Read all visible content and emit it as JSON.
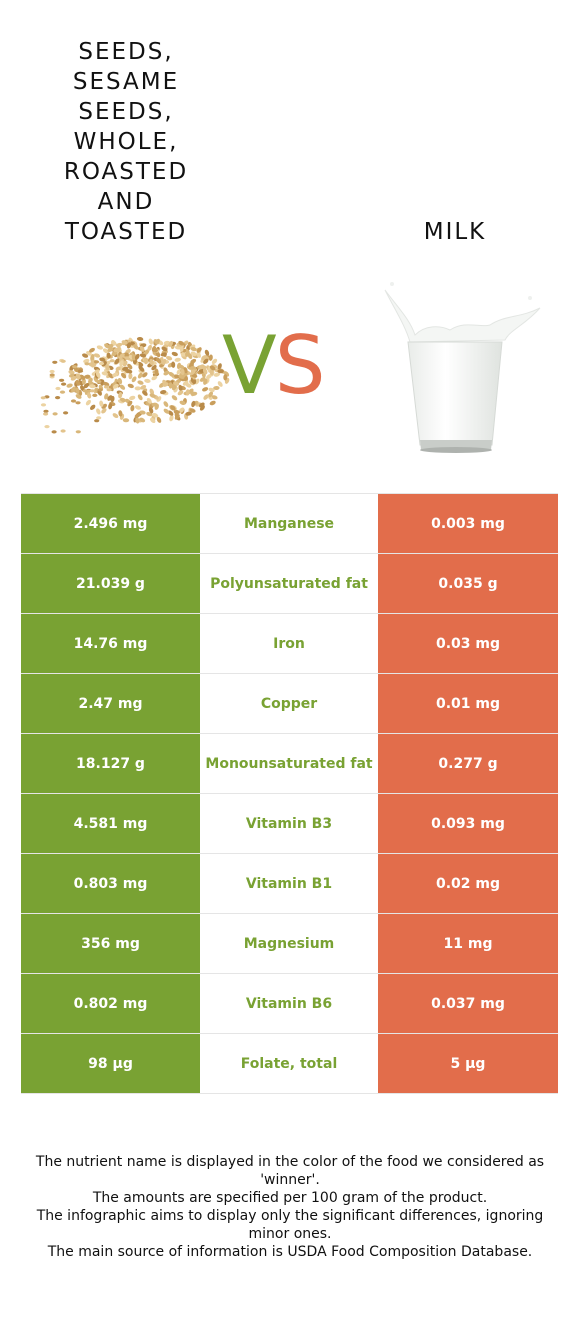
{
  "food1": {
    "title": "SEEDS, SESAME SEEDS, WHOLE, ROASTED AND TOASTED",
    "image": "sesame-seeds-pile"
  },
  "food2": {
    "title": "MILK",
    "image": "glass-of-milk"
  },
  "vs": {
    "v": "V",
    "s": "S"
  },
  "colors": {
    "food1": "#79a233",
    "food2": "#e26d4b"
  },
  "rows": [
    {
      "food1_value": "2.496 mg",
      "nutrient": "Manganese",
      "food2_value": "0.003 mg"
    },
    {
      "food1_value": "21.039 g",
      "nutrient": "Polyunsaturated fat",
      "food2_value": "0.035 g"
    },
    {
      "food1_value": "14.76 mg",
      "nutrient": "Iron",
      "food2_value": "0.03 mg"
    },
    {
      "food1_value": "2.47 mg",
      "nutrient": "Copper",
      "food2_value": "0.01 mg"
    },
    {
      "food1_value": "18.127 g",
      "nutrient": "Monounsaturated fat",
      "food2_value": "0.277 g"
    },
    {
      "food1_value": "4.581 mg",
      "nutrient": "Vitamin B3",
      "food2_value": "0.093 mg"
    },
    {
      "food1_value": "0.803 mg",
      "nutrient": "Vitamin B1",
      "food2_value": "0.02 mg"
    },
    {
      "food1_value": "356 mg",
      "nutrient": "Magnesium",
      "food2_value": "11 mg"
    },
    {
      "food1_value": "0.802 mg",
      "nutrient": "Vitamin B6",
      "food2_value": "0.037 mg"
    },
    {
      "food1_value": "98 µg",
      "nutrient": "Folate, total",
      "food2_value": "5 µg"
    }
  ],
  "footnote": [
    "The nutrient name is displayed in the color of the food we considered as 'winner'.",
    "The amounts are specified per 100 gram of the product.",
    "The infographic aims to display only the significant differences, ignoring minor ones.",
    "The main source of information is USDA Food Composition Database."
  ]
}
